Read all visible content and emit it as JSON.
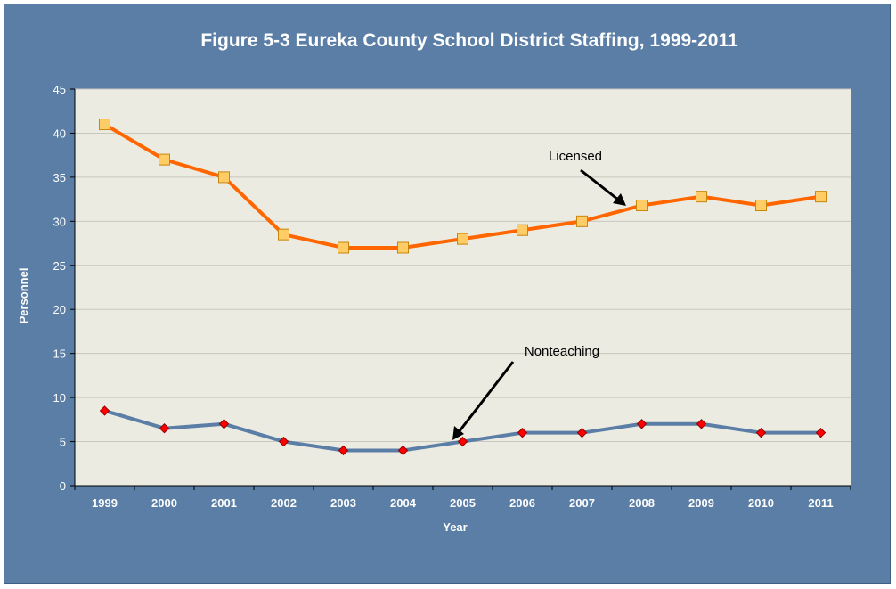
{
  "chart_data": {
    "type": "line",
    "title": "Figure 5-3  Eureka County School District Staffing, 1999-2011",
    "xlabel": "Year",
    "ylabel": "Personnel",
    "ylim": [
      0,
      45
    ],
    "yticks": [
      "0",
      "5",
      "10",
      "15",
      "20",
      "25",
      "30",
      "35",
      "40",
      "45"
    ],
    "categories": [
      "1999",
      "2000",
      "2001",
      "2002",
      "2003",
      "2004",
      "2005",
      "2006",
      "2007",
      "2008",
      "2009",
      "2010",
      "2011"
    ],
    "grid": true,
    "series": [
      {
        "name": "Licensed",
        "values": [
          41,
          37,
          35,
          28.5,
          27,
          27,
          28,
          29,
          30,
          31.8,
          32.8,
          31.8,
          32.8
        ],
        "line_color": "#ff6600",
        "marker": "square",
        "marker_color": "#ffcc66"
      },
      {
        "name": "Nonteaching",
        "values": [
          8.5,
          6.5,
          7,
          5,
          4,
          4,
          5,
          6,
          6,
          7,
          7,
          6,
          6
        ],
        "line_color": "#5b7ea6",
        "marker": "diamond",
        "marker_color": "#ff0000"
      }
    ],
    "annotations": [
      {
        "text": "Licensed",
        "points_to_category": "2008",
        "series": "Licensed"
      },
      {
        "text": "Nonteaching",
        "points_to_category": "2005",
        "series": "Nonteaching"
      }
    ],
    "colors": {
      "background": "#5b7ea6",
      "plot_area": "#ecebe1",
      "gridline": "#c8c7bd"
    }
  }
}
